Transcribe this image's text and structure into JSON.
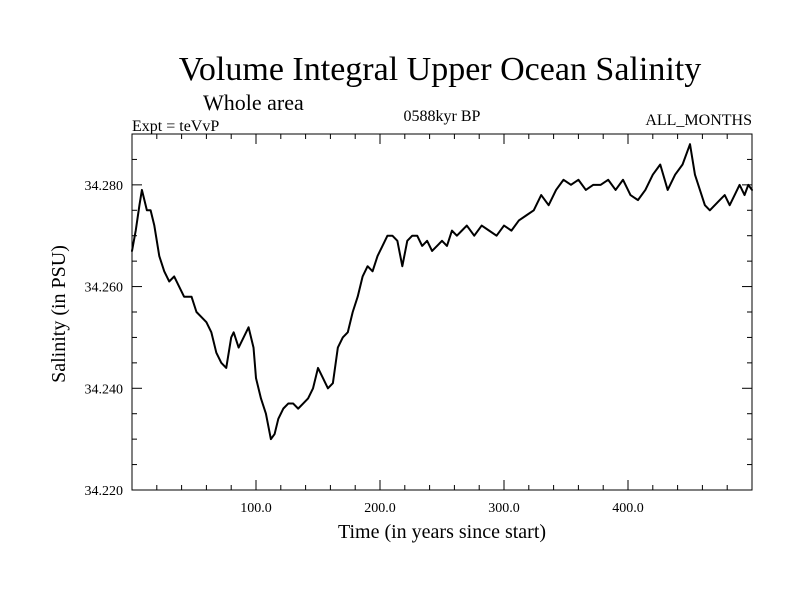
{
  "chart_data": {
    "type": "line",
    "title": "Volume Integral Upper Ocean Salinity",
    "subtitle": "Whole area",
    "left_note": "Expt = teVvP",
    "center_note": "0588kyr BP",
    "right_note": "ALL_MONTHS",
    "xlabel": "Time (in years since start)",
    "ylabel": "Salinity (in PSU)",
    "xlim": [
      0,
      500
    ],
    "ylim": [
      34.22,
      34.29
    ],
    "x_tick_labels": [
      "100.0",
      "200.0",
      "300.0",
      "400.0"
    ],
    "x_tick_values": [
      100,
      200,
      300,
      400
    ],
    "y_tick_labels": [
      "34.220",
      "34.240",
      "34.260",
      "34.280"
    ],
    "y_tick_values": [
      34.22,
      34.24,
      34.26,
      34.28
    ],
    "x_minor_step": 20,
    "y_minor_step": 0.005,
    "grid": false,
    "series": [
      {
        "name": "Salinity",
        "color": "#000000",
        "x": [
          0,
          3,
          6,
          8,
          10,
          12,
          15,
          18,
          22,
          26,
          30,
          34,
          38,
          42,
          48,
          52,
          56,
          60,
          64,
          68,
          72,
          76,
          80,
          82,
          86,
          90,
          94,
          98,
          100,
          104,
          108,
          112,
          115,
          118,
          122,
          126,
          130,
          134,
          138,
          142,
          146,
          150,
          154,
          158,
          162,
          166,
          170,
          174,
          178,
          182,
          186,
          190,
          194,
          198,
          202,
          206,
          210,
          214,
          218,
          222,
          226,
          230,
          234,
          238,
          242,
          246,
          250,
          254,
          258,
          262,
          266,
          270,
          276,
          282,
          288,
          294,
          300,
          306,
          312,
          318,
          324,
          330,
          336,
          342,
          348,
          354,
          360,
          366,
          372,
          378,
          384,
          390,
          396,
          402,
          408,
          414,
          420,
          426,
          432,
          438,
          444,
          450,
          454,
          458,
          462,
          466,
          470,
          474,
          478,
          482,
          486,
          490,
          494,
          497,
          500
        ],
        "y": [
          34.267,
          34.271,
          34.276,
          34.279,
          34.277,
          34.275,
          34.275,
          34.272,
          34.266,
          34.263,
          34.261,
          34.262,
          34.26,
          34.258,
          34.258,
          34.255,
          34.254,
          34.253,
          34.251,
          34.247,
          34.245,
          34.244,
          34.25,
          34.251,
          34.248,
          34.25,
          34.252,
          34.248,
          34.242,
          34.238,
          34.235,
          34.23,
          34.231,
          34.234,
          34.236,
          34.237,
          34.237,
          34.236,
          34.237,
          34.238,
          34.24,
          34.244,
          34.242,
          34.24,
          34.241,
          34.248,
          34.25,
          34.251,
          34.255,
          34.258,
          34.262,
          34.264,
          34.263,
          34.266,
          34.268,
          34.27,
          34.27,
          34.269,
          34.264,
          34.269,
          34.27,
          34.27,
          34.268,
          34.269,
          34.267,
          34.268,
          34.269,
          34.268,
          34.271,
          34.27,
          34.271,
          34.272,
          34.27,
          34.272,
          34.271,
          34.27,
          34.272,
          34.271,
          34.273,
          34.274,
          34.275,
          34.278,
          34.276,
          34.279,
          34.281,
          34.28,
          34.281,
          34.279,
          34.28,
          34.28,
          34.281,
          34.279,
          34.281,
          34.278,
          34.277,
          34.279,
          34.282,
          34.284,
          34.279,
          34.282,
          34.284,
          34.288,
          34.282,
          34.279,
          34.276,
          34.275,
          34.276,
          34.277,
          34.278,
          34.276,
          34.278,
          34.28,
          34.278,
          34.28,
          34.279
        ]
      }
    ]
  }
}
